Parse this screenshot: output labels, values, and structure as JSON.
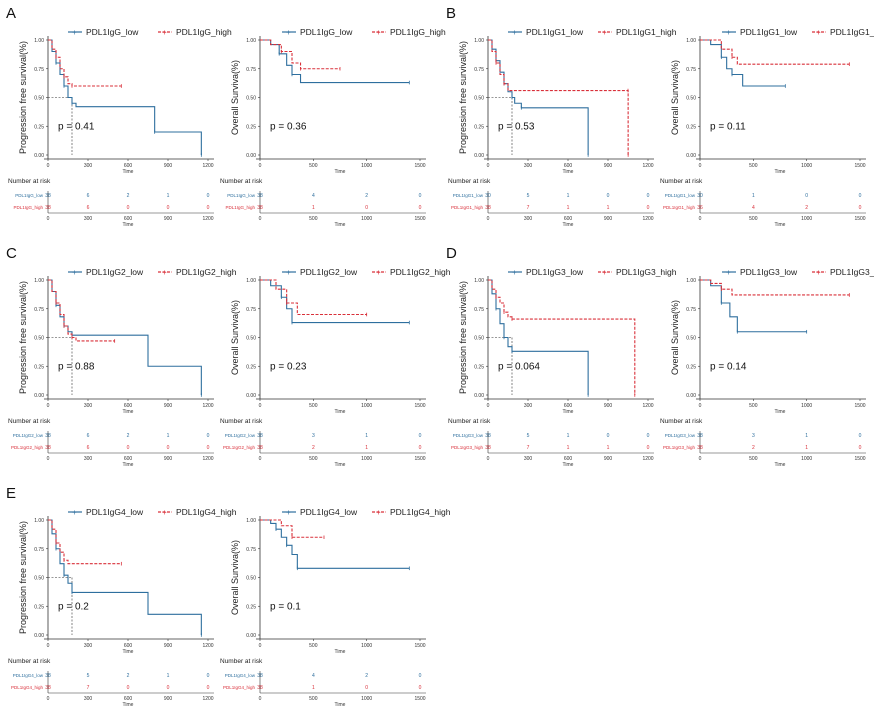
{
  "colors": {
    "low": "#2e6f9e",
    "high": "#d9303a",
    "axis": "#333333",
    "ref": "#333333"
  },
  "common": {
    "legend_low": "PDL1IgG_low",
    "pfs_ylabel": "Progression free survival(%)",
    "os_ylabel": "Overall Surviva(%)",
    "xlabel": "Time",
    "risk_title": "Number at risk",
    "pfs_xticks": [
      "0",
      "300",
      "600",
      "900",
      "1200"
    ],
    "os_xticks": [
      "0",
      "500",
      "1000",
      "1500"
    ],
    "yticks": [
      "0.00",
      "0.25",
      "0.50",
      "0.75",
      "1.00"
    ]
  },
  "chart_data": [
    {
      "panel": "A",
      "legend": [
        "PDL1IgG_low",
        "PDL1IgG_high"
      ],
      "pfs": {
        "type": "line",
        "pvalue": "p = 0.41",
        "xlim": [
          0,
          1200
        ],
        "ylim": [
          0,
          1
        ],
        "median": [
          null,
          null
        ],
        "series": [
          {
            "name": "PDL1IgG_low",
            "x": [
              0,
              30,
              60,
              90,
              120,
              150,
              180,
              210,
              800,
              1150
            ],
            "y": [
              1,
              0.9,
              0.8,
              0.7,
              0.6,
              0.5,
              0.45,
              0.42,
              0.2,
              0
            ]
          },
          {
            "name": "PDL1IgG_high",
            "x": [
              0,
              30,
              60,
              90,
              120,
              150,
              180,
              550
            ],
            "y": [
              1,
              0.92,
              0.85,
              0.75,
              0.68,
              0.62,
              0.6,
              0.6
            ]
          }
        ],
        "risk": {
          "labels": [
            "PDL1IgG_low",
            "PDL1IgG_high"
          ],
          "values": [
            [
              "38",
              "6",
              "2",
              "1",
              "0"
            ],
            [
              "38",
              "6",
              "0",
              "0",
              "0"
            ]
          ]
        }
      },
      "os": {
        "type": "line",
        "pvalue": "p = 0.36",
        "xlim": [
          0,
          1500
        ],
        "ylim": [
          0,
          1
        ],
        "series": [
          {
            "name": "PDL1IgG_low",
            "x": [
              0,
              100,
              180,
              250,
              300,
              380,
              1400
            ],
            "y": [
              1,
              0.96,
              0.88,
              0.78,
              0.7,
              0.63,
              0.63
            ]
          },
          {
            "name": "PDL1IgG_high",
            "x": [
              0,
              100,
              200,
              300,
              380,
              750
            ],
            "y": [
              1,
              0.96,
              0.9,
              0.8,
              0.75,
              0.75
            ]
          }
        ],
        "risk": {
          "labels": [
            "PDL1IgG_low",
            "PDL1IgG_high"
          ],
          "values": [
            [
              "38",
              "4",
              "2",
              "0"
            ],
            [
              "38",
              "1",
              "0",
              "0"
            ]
          ]
        }
      }
    },
    {
      "panel": "B",
      "legend": [
        "PDL1IgG1_low",
        "PDL1IgG1_high"
      ],
      "pfs": {
        "type": "line",
        "pvalue": "p = 0.53",
        "xlim": [
          0,
          1200
        ],
        "ylim": [
          0,
          1
        ],
        "median": [
          null,
          null
        ],
        "series": [
          {
            "name": "PDL1IgG1_low",
            "x": [
              0,
              30,
              60,
              90,
              120,
              150,
              180,
              200,
              250,
              750,
              751
            ],
            "y": [
              1,
              0.92,
              0.82,
              0.72,
              0.62,
              0.55,
              0.5,
              0.45,
              0.41,
              0.41,
              0
            ]
          },
          {
            "name": "PDL1IgG1_high",
            "x": [
              0,
              30,
              60,
              90,
              120,
              150,
              1050,
              1051
            ],
            "y": [
              1,
              0.9,
              0.8,
              0.7,
              0.62,
              0.56,
              0.56,
              0
            ]
          }
        ],
        "risk": {
          "labels": [
            "PDL1IgG1_low",
            "PDL1IgG1_high"
          ],
          "values": [
            [
              "30",
              "5",
              "1",
              "0",
              "0"
            ],
            [
              "38",
              "7",
              "1",
              "1",
              "0"
            ]
          ]
        }
      },
      "os": {
        "type": "line",
        "pvalue": "p = 0.11",
        "xlim": [
          0,
          1500
        ],
        "ylim": [
          0,
          1
        ],
        "series": [
          {
            "name": "PDL1IgG1_low",
            "x": [
              0,
              100,
              200,
              250,
              300,
              400,
              800
            ],
            "y": [
              1,
              0.96,
              0.85,
              0.75,
              0.7,
              0.6,
              0.6
            ]
          },
          {
            "name": "PDL1IgG1_high",
            "x": [
              0,
              200,
              300,
              350,
              1400
            ],
            "y": [
              1,
              0.92,
              0.85,
              0.79,
              0.79
            ]
          }
        ],
        "risk": {
          "labels": [
            "PDL1IgG1_low",
            "PDL1IgG1_high"
          ],
          "values": [
            [
              "30",
              "1",
              "0",
              "0"
            ],
            [
              "36",
              "4",
              "2",
              "0"
            ]
          ]
        }
      }
    },
    {
      "panel": "C",
      "legend": [
        "PDL1IgG2_low",
        "PDL1IgG2_high"
      ],
      "pfs": {
        "type": "line",
        "pvalue": "p = 0.88",
        "xlim": [
          0,
          1200
        ],
        "ylim": [
          0,
          1
        ],
        "median": [
          null,
          null
        ],
        "series": [
          {
            "name": "PDL1IgG2_low",
            "x": [
              0,
              30,
              60,
              90,
              120,
              150,
              180,
              750,
              1150
            ],
            "y": [
              1,
              0.9,
              0.78,
              0.68,
              0.6,
              0.55,
              0.52,
              0.25,
              0
            ]
          },
          {
            "name": "PDL1IgG2_high",
            "x": [
              0,
              30,
              60,
              90,
              120,
              150,
              180,
              210,
              500
            ],
            "y": [
              1,
              0.9,
              0.8,
              0.7,
              0.6,
              0.53,
              0.5,
              0.47,
              0.47
            ]
          }
        ],
        "risk": {
          "labels": [
            "PDL1IgG2_low",
            "PDL1IgG2_high"
          ],
          "values": [
            [
              "38",
              "6",
              "2",
              "1",
              "0"
            ],
            [
              "38",
              "6",
              "0",
              "0",
              "0"
            ]
          ]
        }
      },
      "os": {
        "type": "line",
        "pvalue": "p = 0.23",
        "xlim": [
          0,
          1500
        ],
        "ylim": [
          0,
          1
        ],
        "series": [
          {
            "name": "PDL1IgG2_low",
            "x": [
              0,
              100,
              200,
              250,
              300,
              1400
            ],
            "y": [
              1,
              0.95,
              0.85,
              0.75,
              0.63,
              0.63
            ]
          },
          {
            "name": "PDL1IgG2_high",
            "x": [
              0,
              150,
              250,
              350,
              1000
            ],
            "y": [
              1,
              0.92,
              0.8,
              0.7,
              0.7
            ]
          }
        ],
        "risk": {
          "labels": [
            "PDL1IgG2_low",
            "PDL1IgG2_high"
          ],
          "values": [
            [
              "38",
              "3",
              "1",
              "0"
            ],
            [
              "38",
              "2",
              "1",
              "0"
            ]
          ]
        }
      }
    },
    {
      "panel": "D",
      "legend": [
        "PDL1IgG3_low",
        "PDL1IgG3_high"
      ],
      "pfs": {
        "type": "line",
        "pvalue": "p = 0.064",
        "xlim": [
          0,
          1200
        ],
        "ylim": [
          0,
          1
        ],
        "median": [
          null,
          null
        ],
        "series": [
          {
            "name": "PDL1IgG3_low",
            "x": [
              0,
              30,
              60,
              90,
              120,
              150,
              180,
              750,
              751
            ],
            "y": [
              1,
              0.88,
              0.75,
              0.62,
              0.5,
              0.42,
              0.38,
              0.38,
              0
            ]
          },
          {
            "name": "PDL1IgG3_high",
            "x": [
              0,
              30,
              60,
              90,
              120,
              150,
              180,
              1100,
              1101
            ],
            "y": [
              1,
              0.92,
              0.85,
              0.8,
              0.72,
              0.68,
              0.66,
              0.66,
              0
            ]
          }
        ],
        "risk": {
          "labels": [
            "PDL1IgG3_low",
            "PDL1IgG3_high"
          ],
          "values": [
            [
              "38",
              "5",
              "1",
              "0",
              "0"
            ],
            [
              "38",
              "7",
              "1",
              "1",
              "0"
            ]
          ]
        }
      },
      "os": {
        "type": "line",
        "pvalue": "p = 0.14",
        "xlim": [
          0,
          1500
        ],
        "ylim": [
          0,
          1
        ],
        "series": [
          {
            "name": "PDL1IgG3_low",
            "x": [
              0,
              100,
              200,
              280,
              350,
              1000
            ],
            "y": [
              1,
              0.95,
              0.8,
              0.68,
              0.55,
              0.55
            ]
          },
          {
            "name": "PDL1IgG3_high",
            "x": [
              0,
              100,
              200,
              300,
              1400
            ],
            "y": [
              1,
              0.97,
              0.92,
              0.87,
              0.87
            ]
          }
        ],
        "risk": {
          "labels": [
            "PDL1IgG3_low",
            "PDL1IgG3_high"
          ],
          "values": [
            [
              "38",
              "3",
              "1",
              "0"
            ],
            [
              "38",
              "2",
              "1",
              "0"
            ]
          ]
        }
      }
    },
    {
      "panel": "E",
      "legend": [
        "PDL1IgG4_low",
        "PDL1IgG4_high"
      ],
      "pfs": {
        "type": "line",
        "pvalue": "p = 0.2",
        "xlim": [
          0,
          1200
        ],
        "ylim": [
          0,
          1
        ],
        "median": [
          null,
          null
        ],
        "series": [
          {
            "name": "PDL1IgG4_low",
            "x": [
              0,
              30,
              60,
              90,
              120,
              150,
              180,
              750,
              1150
            ],
            "y": [
              1,
              0.88,
              0.75,
              0.62,
              0.52,
              0.45,
              0.37,
              0.18,
              0
            ]
          },
          {
            "name": "PDL1IgG4_high",
            "x": [
              0,
              30,
              60,
              90,
              120,
              150,
              550
            ],
            "y": [
              1,
              0.92,
              0.8,
              0.72,
              0.65,
              0.62,
              0.62
            ]
          }
        ],
        "risk": {
          "labels": [
            "PDL1IgG4_low",
            "PDL1IgG4_high"
          ],
          "values": [
            [
              "38",
              "5",
              "2",
              "1",
              "0"
            ],
            [
              "38",
              "7",
              "0",
              "0",
              "0"
            ]
          ]
        }
      },
      "os": {
        "type": "line",
        "pvalue": "p = 0.1",
        "xlim": [
          0,
          1500
        ],
        "ylim": [
          0,
          1
        ],
        "series": [
          {
            "name": "PDL1IgG4_low",
            "x": [
              0,
              100,
              150,
              200,
              250,
              300,
              350,
              1400
            ],
            "y": [
              1,
              0.97,
              0.92,
              0.85,
              0.78,
              0.7,
              0.58,
              0.58
            ]
          },
          {
            "name": "PDL1IgG4_high",
            "x": [
              0,
              200,
              300,
              600
            ],
            "y": [
              1,
              0.95,
              0.85,
              0.85
            ]
          }
        ],
        "risk": {
          "labels": [
            "PDL1IgG4_low",
            "PDL1IgG4_high"
          ],
          "values": [
            [
              "38",
              "4",
              "2",
              "0"
            ],
            [
              "38",
              "1",
              "0",
              "0"
            ]
          ]
        }
      }
    }
  ]
}
